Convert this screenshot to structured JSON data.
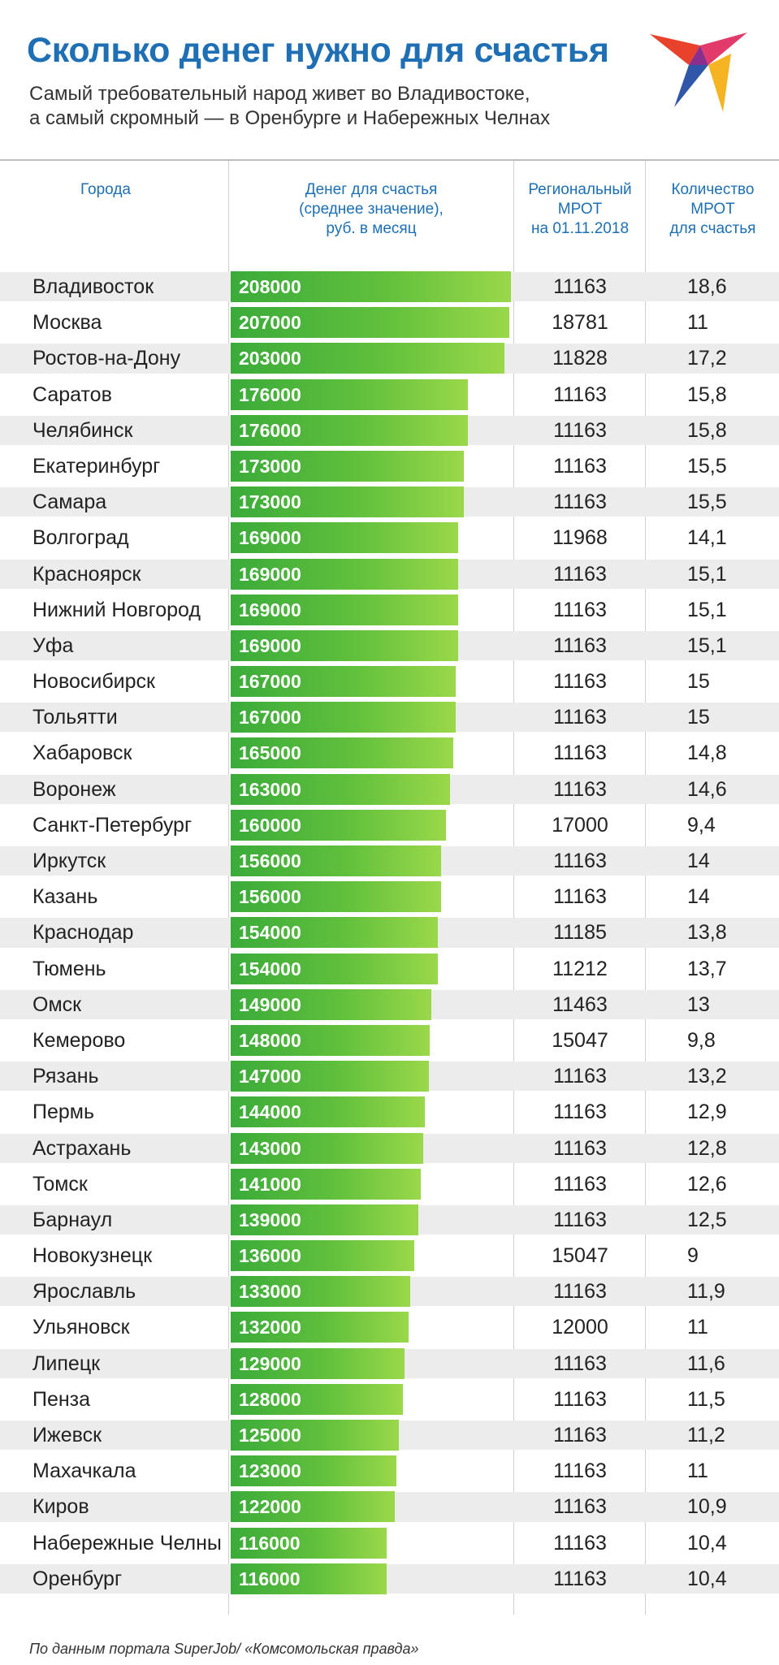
{
  "title": "Сколько денег нужно для счастья",
  "subtitle_line1": "Самый требовательный народ живет во Владивостоке,",
  "subtitle_line2": "а самый скромный — в Оренбурге и Набережных Челнах",
  "headers": {
    "city": "Города",
    "money_l1": "Денег для счастья",
    "money_l2": "(среднее значение),",
    "money_l3": "руб. в месяц",
    "mrot_l1": "Региональный",
    "mrot_l2": "МРОТ",
    "mrot_l3": "на 01.11.2018",
    "qty_l1": "Количество",
    "qty_l2": "МРОТ",
    "qty_l3": "для счастья"
  },
  "source": "По данным портала SuperJob/ «Комсомольская правда»",
  "colors": {
    "title": "#1e6fb3",
    "bar_start": "#3aab3a",
    "bar_end": "#9ad84a",
    "row_shade": "#ececec"
  },
  "chart_data": {
    "type": "table",
    "max_value": 208000,
    "columns": [
      "Города",
      "Денег для счастья",
      "Региональный МРОТ",
      "Количество МРОТ для счастья"
    ],
    "rows": [
      {
        "city": "Владивосток",
        "money": 208000,
        "money_label": "208000",
        "mrot": "11163",
        "qty": "18,6"
      },
      {
        "city": "Москва",
        "money": 207000,
        "money_label": "207000",
        "mrot": "18781",
        "qty": "11"
      },
      {
        "city": "Ростов-на-Дону",
        "money": 203000,
        "money_label": "203000",
        "mrot": "11828",
        "qty": "17,2"
      },
      {
        "city": "Саратов",
        "money": 176000,
        "money_label": "176000",
        "mrot": "11163",
        "qty": "15,8"
      },
      {
        "city": "Челябинск",
        "money": 176000,
        "money_label": "176000",
        "mrot": "11163",
        "qty": "15,8"
      },
      {
        "city": "Екатеринбург",
        "money": 173000,
        "money_label": "173000",
        "mrot": "11163",
        "qty": "15,5"
      },
      {
        "city": "Самара",
        "money": 173000,
        "money_label": "173000",
        "mrot": "11163",
        "qty": "15,5"
      },
      {
        "city": "Волгоград",
        "money": 169000,
        "money_label": "169000",
        "mrot": "11968",
        "qty": "14,1"
      },
      {
        "city": "Красноярск",
        "money": 169000,
        "money_label": "169000",
        "mrot": "11163",
        "qty": "15,1"
      },
      {
        "city": "Нижний Новгород",
        "money": 169000,
        "money_label": "169000",
        "mrot": "11163",
        "qty": "15,1"
      },
      {
        "city": "Уфа",
        "money": 169000,
        "money_label": "169000",
        "mrot": "11163",
        "qty": "15,1"
      },
      {
        "city": "Новосибирск",
        "money": 167000,
        "money_label": "167000",
        "mrot": "11163",
        "qty": "15"
      },
      {
        "city": "Тольятти",
        "money": 167000,
        "money_label": "167000",
        "mrot": "11163",
        "qty": "15"
      },
      {
        "city": "Хабаровск",
        "money": 165000,
        "money_label": "165000",
        "mrot": "11163",
        "qty": "14,8"
      },
      {
        "city": "Воронеж",
        "money": 163000,
        "money_label": "163000",
        "mrot": "11163",
        "qty": "14,6"
      },
      {
        "city": "Санкт-Петербург",
        "money": 160000,
        "money_label": "160000",
        "mrot": "17000",
        "qty": "9,4"
      },
      {
        "city": "Иркутск",
        "money": 156000,
        "money_label": "156000",
        "mrot": "11163",
        "qty": "14"
      },
      {
        "city": "Казань",
        "money": 156000,
        "money_label": "156000",
        "mrot": "11163",
        "qty": "14"
      },
      {
        "city": "Краснодар",
        "money": 154000,
        "money_label": "154000",
        "mrot": "11185",
        "qty": "13,8"
      },
      {
        "city": "Тюмень",
        "money": 154000,
        "money_label": "154000",
        "mrot": "11212",
        "qty": "13,7"
      },
      {
        "city": "Омск",
        "money": 149000,
        "money_label": "149000",
        "mrot": "11463",
        "qty": "13"
      },
      {
        "city": "Кемерово",
        "money": 148000,
        "money_label": "148000",
        "mrot": "15047",
        "qty": "9,8"
      },
      {
        "city": "Рязань",
        "money": 147000,
        "money_label": "147000",
        "mrot": "11163",
        "qty": "13,2"
      },
      {
        "city": "Пермь",
        "money": 144000,
        "money_label": "144000",
        "mrot": "11163",
        "qty": "12,9"
      },
      {
        "city": "Астрахань",
        "money": 143000,
        "money_label": "143000",
        "mrot": "11163",
        "qty": "12,8"
      },
      {
        "city": "Томск",
        "money": 141000,
        "money_label": "141000",
        "mrot": "11163",
        "qty": "12,6"
      },
      {
        "city": "Барнаул",
        "money": 139000,
        "money_label": "139000",
        "mrot": "11163",
        "qty": "12,5"
      },
      {
        "city": "Новокузнецк",
        "money": 136000,
        "money_label": "136000",
        "mrot": "15047",
        "qty": "9"
      },
      {
        "city": "Ярославль",
        "money": 133000,
        "money_label": "133000",
        "mrot": "11163",
        "qty": "11,9"
      },
      {
        "city": "Ульяновск",
        "money": 132000,
        "money_label": "132000",
        "mrot": "12000",
        "qty": "11"
      },
      {
        "city": "Липецк",
        "money": 129000,
        "money_label": "129000",
        "mrot": "11163",
        "qty": "11,6"
      },
      {
        "city": "Пенза",
        "money": 128000,
        "money_label": "128000",
        "mrot": "11163",
        "qty": "11,5"
      },
      {
        "city": "Ижевск",
        "money": 125000,
        "money_label": "125000",
        "mrot": "11163",
        "qty": "11,2"
      },
      {
        "city": "Махачкала",
        "money": 123000,
        "money_label": "123000",
        "mrot": "11163",
        "qty": "11"
      },
      {
        "city": "Киров",
        "money": 122000,
        "money_label": "122000",
        "mrot": "11163",
        "qty": "10,9"
      },
      {
        "city": "Набережные Челны",
        "money": 116000,
        "money_label": "116000",
        "mrot": "11163",
        "qty": "10,4"
      },
      {
        "city": "Оренбург",
        "money": 116000,
        "money_label": "116000",
        "mrot": "11163",
        "qty": "10,4"
      }
    ]
  }
}
